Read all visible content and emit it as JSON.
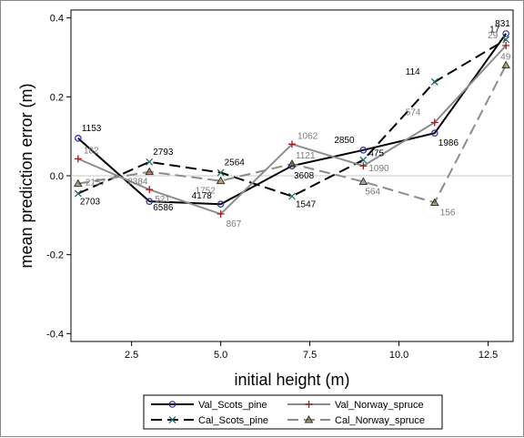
{
  "chart_data": {
    "type": "line",
    "xlabel": "initial height (m)",
    "ylabel": "mean prediction error (m)",
    "xlim": [
      0.8,
      13.2
    ],
    "ylim": [
      -0.42,
      0.42
    ],
    "xticks": [
      2.5,
      5.0,
      7.5,
      10.0,
      12.5
    ],
    "xtick_labels": [
      "2.5",
      "5.0",
      "7.5",
      "10.0",
      "12.5"
    ],
    "yticks": [
      -0.4,
      -0.2,
      0.0,
      0.2,
      0.4
    ],
    "ytick_labels": [
      "-0.4",
      "-0.2",
      "0.0",
      "0.2",
      "0.4"
    ],
    "reference_line_y": 0.0,
    "legend_position": "bottom",
    "series": [
      {
        "name": "Val_Scots_pine",
        "color": "#000000",
        "marker_color": "#2a2aa8",
        "marker": "circle",
        "dash": "solid",
        "x": [
          1,
          3,
          5,
          7,
          9,
          11,
          13
        ],
        "y": [
          0.095,
          -0.065,
          -0.072,
          0.025,
          0.065,
          0.108,
          0.36
        ],
        "labels": [
          "1153",
          "6586",
          "4178",
          "3608",
          "2850",
          "1986",
          "831"
        ],
        "label_color": "#000000"
      },
      {
        "name": "Cal_Scots_pine",
        "color": "#000000",
        "marker_color": "#1f6f6a",
        "marker": "x",
        "dash": "longdash",
        "x": [
          1,
          3,
          5,
          7,
          9,
          11,
          13
        ],
        "y": [
          -0.045,
          0.035,
          0.008,
          -0.052,
          0.04,
          0.238,
          0.345
        ],
        "labels": [
          "2703",
          "2793",
          "2564",
          "1547",
          "475",
          "114",
          "17"
        ],
        "label_color": "#000000"
      },
      {
        "name": "Val_Norway_spruce",
        "color": "#8c8c8c",
        "marker_color": "#a01c1c",
        "marker": "plus",
        "dash": "solid",
        "x": [
          1,
          3,
          5,
          7,
          9,
          11,
          13
        ],
        "y": [
          0.043,
          -0.035,
          -0.097,
          0.08,
          0.025,
          0.135,
          0.33
        ],
        "labels": [
          "182",
          "521",
          "867",
          "1062",
          "1090",
          "574",
          "29"
        ],
        "label_color": "#7a7a7a"
      },
      {
        "name": "Cal_Norway_spruce",
        "color": "#8c8c8c",
        "marker_color": "#7a5a1a",
        "marker": "triangle",
        "dash": "longdash",
        "x": [
          1,
          3,
          5,
          7,
          9,
          11,
          13
        ],
        "y": [
          -0.02,
          0.01,
          -0.013,
          0.03,
          -0.015,
          -0.068,
          0.28
        ],
        "labels": [
          "2157",
          "2384",
          "1752",
          "1121",
          "564",
          "156",
          "49"
        ],
        "label_color": "#7a7a7a"
      }
    ]
  }
}
